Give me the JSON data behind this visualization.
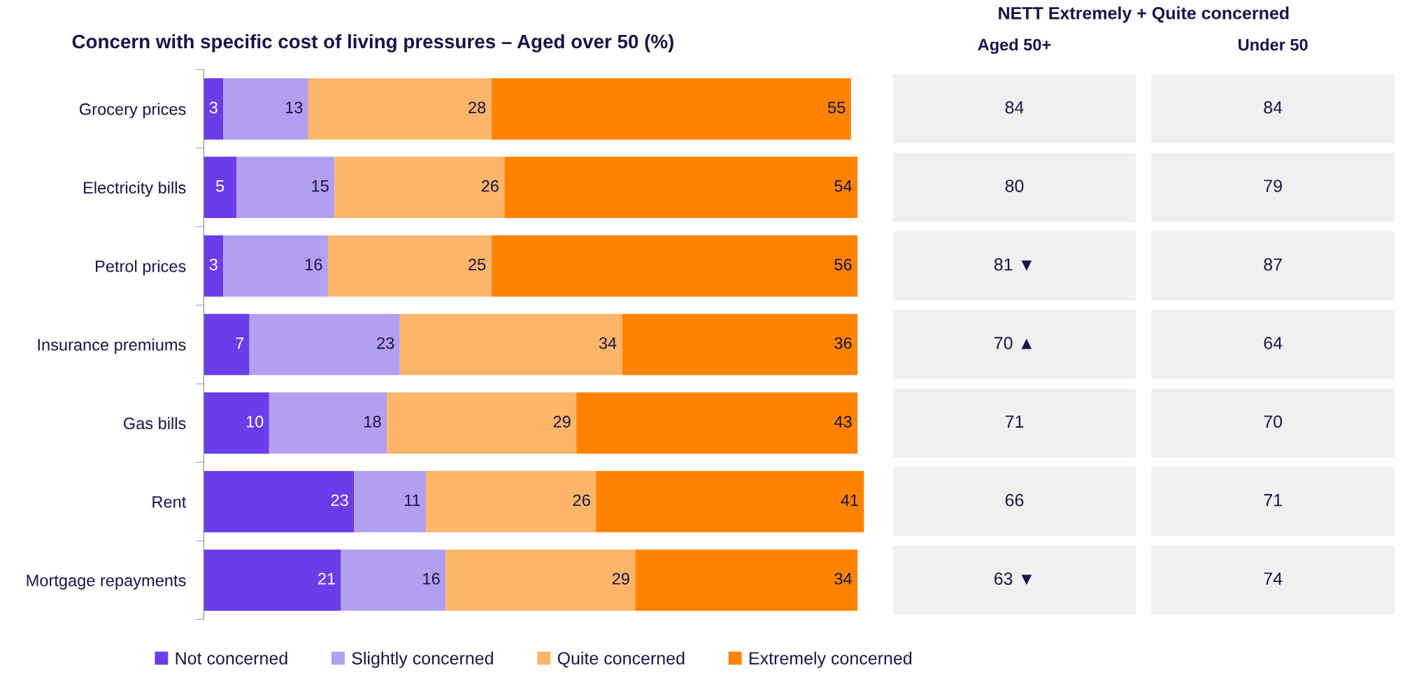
{
  "chart_data": [
    {
      "type": "bar",
      "orientation": "horizontal",
      "stacked": true,
      "title": "Concern with specific cost of living pressures – Aged over 50 (%)",
      "categories": [
        "Grocery prices",
        "Electricity bills",
        "Petrol prices",
        "Insurance premiums",
        "Gas bills",
        "Rent",
        "Mortgage repayments"
      ],
      "series": [
        {
          "name": "Not concerned",
          "color": "#6a3de8",
          "values": [
            3,
            5,
            3,
            7,
            10,
            23,
            21
          ]
        },
        {
          "name": "Slightly concerned",
          "color": "#b19ff0",
          "values": [
            13,
            15,
            16,
            23,
            18,
            11,
            16
          ]
        },
        {
          "name": "Quite concerned",
          "color": "#fdb56a",
          "values": [
            28,
            26,
            25,
            34,
            29,
            26,
            29
          ]
        },
        {
          "name": "Extremely concerned",
          "color": "#ff8300",
          "values": [
            55,
            54,
            56,
            36,
            43,
            41,
            34
          ]
        }
      ],
      "data_labels": true,
      "legend": "bottom",
      "tick_labels": "y",
      "grid": false
    },
    {
      "type": "other",
      "title": "NETT Extremely + Quite concerned",
      "color": "#f0f0f0",
      "categories": [
        "Aged 50+",
        "Under 50"
      ],
      "annotations": [
        "84",
        "84",
        "80",
        "79",
        "81 ▼",
        "87",
        "70 ▲",
        "64",
        "71",
        "70",
        "66",
        "71",
        "63 ▼",
        "74"
      ]
    }
  ]
}
